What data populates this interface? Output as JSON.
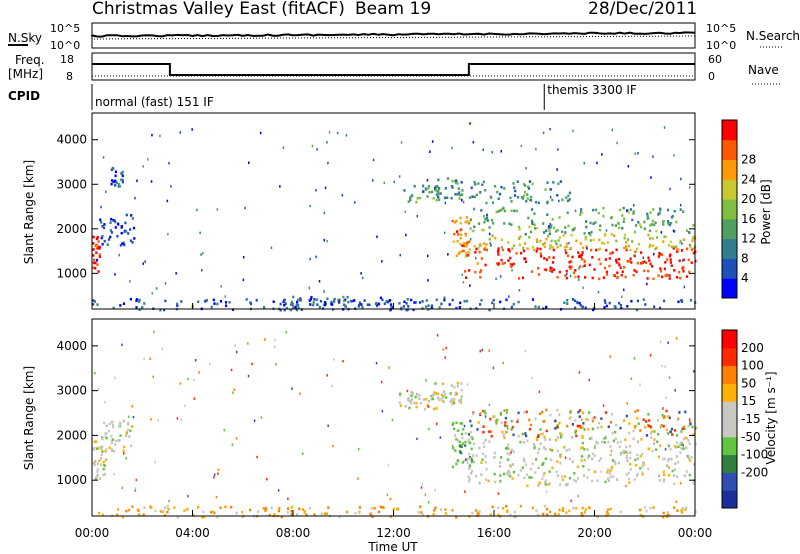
{
  "header": {
    "title": "Christmas Valley East (fitACF)",
    "beam": "Beam 19",
    "date": "28/Dec/2011"
  },
  "status_panels": {
    "nsky_label": "N.Sky",
    "nsearch_label": "N.Search",
    "noise_ticks": [
      "10^5",
      "10^0"
    ],
    "freq_label_1": "Freq.",
    "freq_label_2": "[MHz]",
    "freq_ticks": [
      "18",
      "8"
    ],
    "nave_label": "Nave",
    "nave_ticks": [
      "60",
      "0"
    ],
    "cpid_label": "CPID",
    "cpid_segments": [
      {
        "text": "normal (fast) 151 IF",
        "start_hour": 0
      },
      {
        "text": "themis 3300 IF",
        "start_hour": 18
      }
    ]
  },
  "chart_data": [
    {
      "type": "heatmap",
      "name": "power",
      "ylabel": "Slant Range [km]",
      "xlabel": "",
      "x_ticks": [
        "00:00",
        "04:00",
        "08:00",
        "12:00",
        "16:00",
        "20:00",
        "00:00"
      ],
      "y_ticks": [
        "1000",
        "2000",
        "3000",
        "4000"
      ],
      "xlim": [
        0,
        24
      ],
      "ylim": [
        200,
        4600
      ],
      "colorbar_title": "Power [dB]",
      "colorbar_ticks": [
        "4",
        "8",
        "12",
        "16",
        "20",
        "24",
        "28"
      ],
      "colorbar_colors": [
        "#0000ff",
        "#1f4fb8",
        "#2f7f8f",
        "#4f9f60",
        "#7fbf40",
        "#c8c830",
        "#ff9a00",
        "#ff5a00",
        "#ff0000"
      ],
      "regions": [
        {
          "t": [
            0.0,
            0.3
          ],
          "r": [
            1050,
            1900
          ],
          "level": 0.9
        },
        {
          "t": [
            0.2,
            1.7
          ],
          "r": [
            1650,
            2350
          ],
          "level": 0.15
        },
        {
          "t": [
            0.7,
            1.2
          ],
          "r": [
            2900,
            3400
          ],
          "level": 0.2
        },
        {
          "t": [
            12.2,
            13.8
          ],
          "r": [
            2600,
            3000
          ],
          "level": 0.35
        },
        {
          "t": [
            13.6,
            14.8
          ],
          "r": [
            2700,
            3200
          ],
          "level": 0.35
        },
        {
          "t": [
            14.3,
            15.0
          ],
          "r": [
            1300,
            2300
          ],
          "level": 0.75
        },
        {
          "t": [
            14.8,
            24.0
          ],
          "r": [
            900,
            1600
          ],
          "level": 0.95
        },
        {
          "t": [
            15.0,
            24.0
          ],
          "r": [
            1550,
            1900
          ],
          "level": 0.6
        },
        {
          "t": [
            15.0,
            24.0
          ],
          "r": [
            1900,
            2500
          ],
          "level": 0.4
        },
        {
          "t": [
            15.0,
            19.0
          ],
          "r": [
            2600,
            3100
          ],
          "level": 0.3
        },
        {
          "t": [
            0.0,
            24.0
          ],
          "r": [
            200,
            450
          ],
          "level": 0.15
        },
        {
          "t": [
            7.0,
            14.0
          ],
          "r": [
            200,
            500
          ],
          "level": 0.2
        }
      ]
    },
    {
      "type": "heatmap",
      "name": "velocity",
      "ylabel": "Slant Range [km]",
      "xlabel": "Time UT",
      "x_ticks": [
        "00:00",
        "04:00",
        "08:00",
        "12:00",
        "16:00",
        "20:00",
        "00:00"
      ],
      "y_ticks": [
        "1000",
        "2000",
        "3000",
        "4000"
      ],
      "xlim": [
        0,
        24
      ],
      "ylim": [
        200,
        4600
      ],
      "colorbar_title": "Velocity [m s⁻¹]",
      "colorbar_ticks": [
        "200",
        "100",
        "50",
        "15",
        "-15",
        "-50",
        "-100",
        "-200"
      ],
      "colorbar_colors": [
        "#1a2f9a",
        "#2f4fb0",
        "#2f7f3f",
        "#5fc43f",
        "#c8c8c0",
        "#c8c8c0",
        "#ffb000",
        "#ff7f00",
        "#ff2a00",
        "#ff0000"
      ],
      "regions": [
        {
          "t": [
            0.0,
            0.5
          ],
          "r": [
            1000,
            1900
          ],
          "cls": "gray"
        },
        {
          "t": [
            0.3,
            1.6
          ],
          "r": [
            1650,
            2350
          ],
          "cls": "gray"
        },
        {
          "t": [
            12.2,
            13.8
          ],
          "r": [
            2600,
            3000
          ],
          "cls": "gray"
        },
        {
          "t": [
            13.5,
            14.7
          ],
          "r": [
            2700,
            3200
          ],
          "cls": "gray"
        },
        {
          "t": [
            14.3,
            15.1
          ],
          "r": [
            1300,
            2400
          ],
          "cls": "green"
        },
        {
          "t": [
            14.9,
            24.0
          ],
          "r": [
            900,
            2000
          ],
          "cls": "gray"
        },
        {
          "t": [
            15.0,
            24.0
          ],
          "r": [
            2000,
            2600
          ],
          "cls": "mixed"
        },
        {
          "t": [
            0.0,
            24.0
          ],
          "r": [
            200,
            450
          ],
          "cls": "orange"
        }
      ]
    }
  ]
}
